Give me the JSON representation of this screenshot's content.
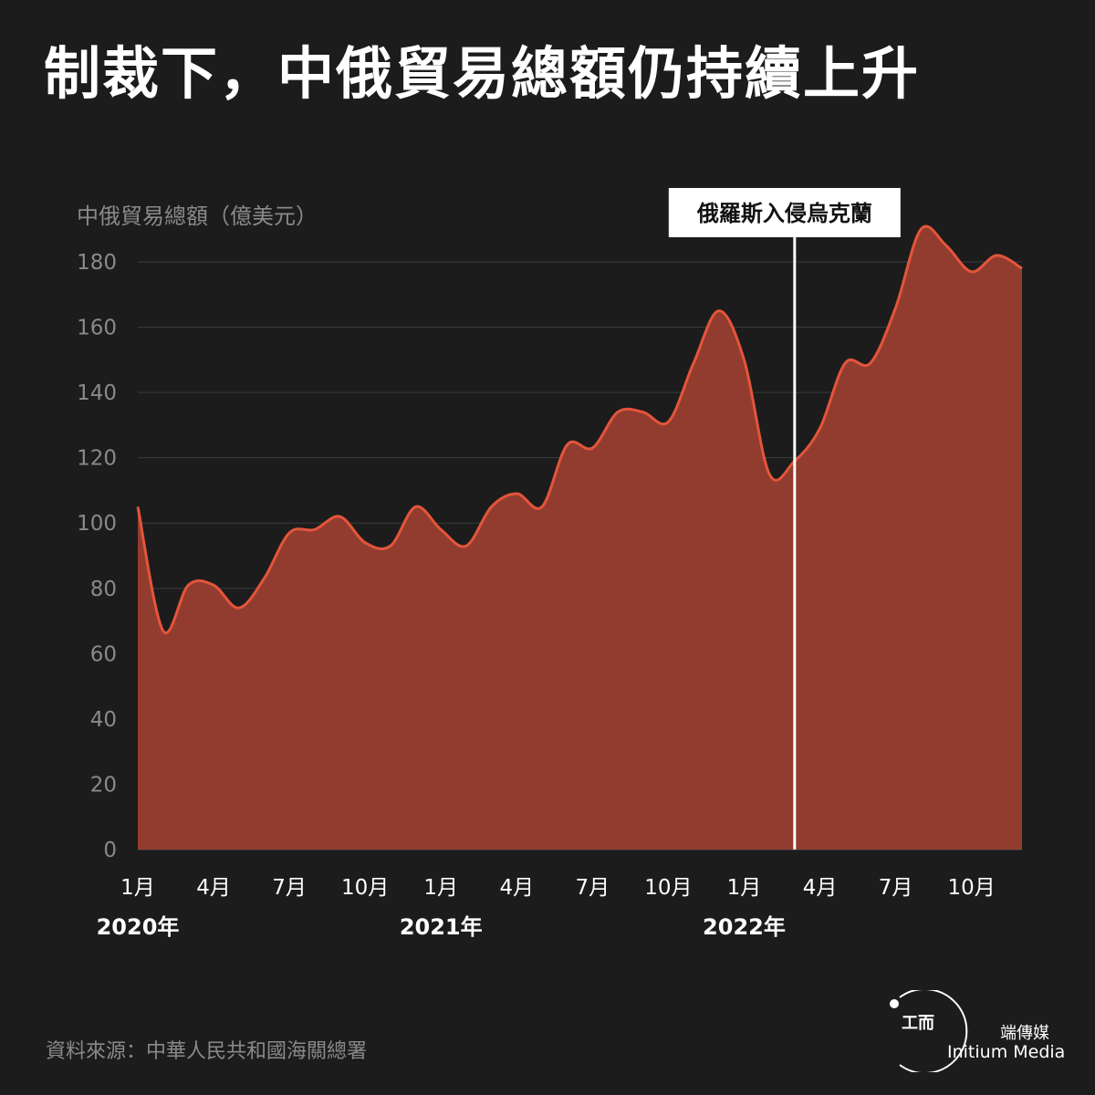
{
  "header": {
    "title": "制裁下，中俄貿易總額仍持續上升"
  },
  "footer": {
    "source": "資料來源：中華人民共和國海關總署"
  },
  "brand": {
    "name_zh": "端傳媒",
    "name_en": "Initium Media",
    "mark_text": "工而"
  },
  "colors": {
    "background": "#1c1c1c",
    "area_fill": "#923c2f",
    "line": "#e4553b",
    "event_line": "#ffffff"
  },
  "chart_data": {
    "type": "area",
    "title": "",
    "ylabel": "中俄貿易總額（億美元）",
    "xlabel": "",
    "ylim": [
      0,
      180
    ],
    "yticks": [
      0,
      20,
      40,
      60,
      80,
      100,
      120,
      140,
      160,
      180
    ],
    "grid": true,
    "x_tick_labels": [
      {
        "month": 0,
        "label": "1月"
      },
      {
        "month": 3,
        "label": "4月"
      },
      {
        "month": 6,
        "label": "7月"
      },
      {
        "month": 9,
        "label": "10月"
      },
      {
        "month": 12,
        "label": "1月"
      },
      {
        "month": 15,
        "label": "4月"
      },
      {
        "month": 18,
        "label": "7月"
      },
      {
        "month": 21,
        "label": "10月"
      },
      {
        "month": 24,
        "label": "1月"
      },
      {
        "month": 27,
        "label": "4月"
      },
      {
        "month": 30,
        "label": "7月"
      },
      {
        "month": 33,
        "label": "10月"
      }
    ],
    "year_labels": [
      {
        "month": 0,
        "label": "2020年"
      },
      {
        "month": 12,
        "label": "2021年"
      },
      {
        "month": 24,
        "label": "2022年"
      }
    ],
    "x": [
      "2020-01",
      "2020-02",
      "2020-03",
      "2020-04",
      "2020-05",
      "2020-06",
      "2020-07",
      "2020-08",
      "2020-09",
      "2020-10",
      "2020-11",
      "2020-12",
      "2021-01",
      "2021-02",
      "2021-03",
      "2021-04",
      "2021-05",
      "2021-06",
      "2021-07",
      "2021-08",
      "2021-09",
      "2021-10",
      "2021-11",
      "2021-12",
      "2022-01",
      "2022-02",
      "2022-03",
      "2022-04",
      "2022-05",
      "2022-06",
      "2022-07",
      "2022-08",
      "2022-09",
      "2022-10",
      "2022-11",
      "2022-12"
    ],
    "values": [
      105,
      67,
      81,
      81,
      74,
      83,
      97,
      98,
      102,
      94,
      93,
      105,
      98,
      93,
      105,
      109,
      105,
      124,
      123,
      134,
      134,
      131,
      149,
      165,
      150,
      115,
      119,
      129,
      149,
      149,
      166,
      190,
      185,
      177,
      182,
      178
    ],
    "event": {
      "label": "俄羅斯入侵烏克蘭",
      "month": 26
    }
  }
}
